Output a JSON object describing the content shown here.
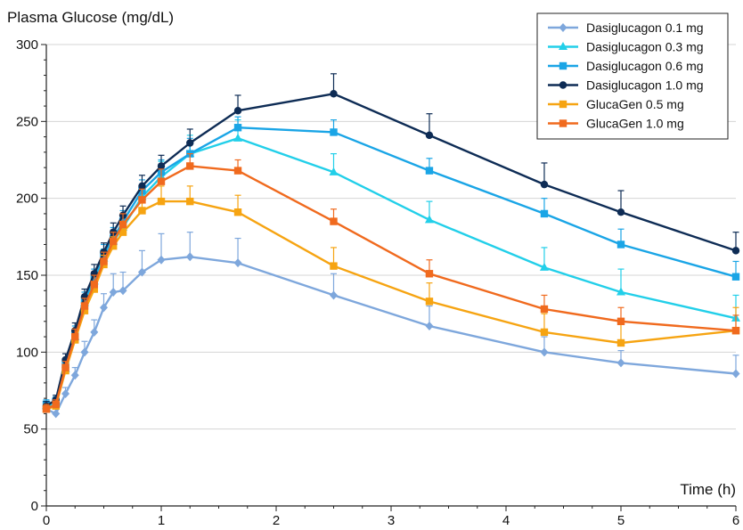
{
  "chart_data": {
    "type": "line",
    "ylabel": "Plasma Glucose (mg/dL)",
    "xlabel": "Time (h)",
    "xlim": [
      0,
      6
    ],
    "ylim": [
      0,
      300
    ],
    "xticks": [
      0,
      1,
      2,
      3,
      4,
      5,
      6
    ],
    "yticks": [
      0,
      50,
      100,
      150,
      200,
      250,
      300
    ],
    "grid": "horizontal",
    "legend_position": "top-right",
    "series": [
      {
        "name": "Dasiglucagon 0.1 mg",
        "color": "#7ea7dc",
        "marker": "diamond",
        "x": [
          0,
          0.083,
          0.167,
          0.25,
          0.333,
          0.417,
          0.5,
          0.583,
          0.667,
          0.833,
          1,
          1.25,
          1.667,
          2.5,
          3.333,
          4.333,
          5,
          6
        ],
        "y": [
          63,
          60,
          73,
          85,
          100,
          113,
          129,
          139,
          140,
          152,
          160,
          162,
          158,
          137,
          117,
          100,
          93,
          86
        ],
        "err": [
          3,
          3,
          4,
          5,
          7,
          8,
          9,
          12,
          12,
          14,
          17,
          16,
          16,
          14,
          13,
          10,
          8,
          12
        ]
      },
      {
        "name": "Dasiglucagon 0.3 mg",
        "color": "#22cfe9",
        "marker": "triangle",
        "x": [
          0,
          0.083,
          0.167,
          0.25,
          0.333,
          0.417,
          0.5,
          0.583,
          0.667,
          0.833,
          1,
          1.25,
          1.667,
          2.5,
          3.333,
          4.333,
          5,
          6
        ],
        "y": [
          65,
          66,
          89,
          110,
          132,
          146,
          161,
          172,
          181,
          201,
          214,
          229,
          239,
          217,
          186,
          155,
          139,
          122
        ],
        "err": [
          3,
          3,
          4,
          5,
          5,
          6,
          6,
          6,
          7,
          8,
          10,
          12,
          12,
          12,
          12,
          13,
          15,
          15
        ]
      },
      {
        "name": "Dasiglucagon 0.6 mg",
        "color": "#1aa5e6",
        "marker": "square",
        "x": [
          0,
          0.083,
          0.167,
          0.25,
          0.333,
          0.417,
          0.5,
          0.583,
          0.667,
          0.833,
          1,
          1.25,
          1.667,
          2.5,
          3.333,
          4.333,
          5,
          6
        ],
        "y": [
          66,
          68,
          92,
          112,
          134,
          148,
          164,
          174,
          185,
          205,
          217,
          229,
          246,
          243,
          218,
          190,
          170,
          149
        ],
        "err": [
          3,
          3,
          4,
          5,
          5,
          6,
          6,
          7,
          7,
          7,
          8,
          10,
          7,
          8,
          8,
          10,
          10,
          10
        ]
      },
      {
        "name": "Dasiglucagon 1.0 mg",
        "color": "#0e2c55",
        "marker": "circle",
        "x": [
          0,
          0.083,
          0.167,
          0.25,
          0.333,
          0.417,
          0.5,
          0.583,
          0.667,
          0.833,
          1,
          1.25,
          1.667,
          2.5,
          3.333,
          4.333,
          5,
          6
        ],
        "y": [
          65,
          69,
          95,
          114,
          136,
          151,
          165,
          178,
          189,
          208,
          221,
          236,
          257,
          268,
          241,
          209,
          191,
          166
        ],
        "err": [
          3,
          3,
          4,
          5,
          5,
          6,
          6,
          6,
          6,
          7,
          7,
          9,
          10,
          13,
          14,
          14,
          14,
          12
        ]
      },
      {
        "name": "GlucaGen 0.5 mg",
        "color": "#f6a412",
        "marker": "square",
        "x": [
          0,
          0.083,
          0.167,
          0.25,
          0.333,
          0.417,
          0.5,
          0.583,
          0.667,
          0.833,
          1,
          1.25,
          1.667,
          2.5,
          3.333,
          4.333,
          5,
          6
        ],
        "y": [
          63,
          65,
          88,
          108,
          127,
          141,
          157,
          169,
          178,
          192,
          198,
          198,
          191,
          156,
          133,
          113,
          106,
          114
        ],
        "err": [
          3,
          3,
          4,
          4,
          5,
          5,
          6,
          6,
          7,
          8,
          10,
          10,
          11,
          12,
          12,
          12,
          12,
          15
        ]
      },
      {
        "name": "GlucaGen 1.0 mg",
        "color": "#f06a1e",
        "marker": "square",
        "x": [
          0,
          0.083,
          0.167,
          0.25,
          0.333,
          0.417,
          0.5,
          0.583,
          0.667,
          0.833,
          1,
          1.25,
          1.667,
          2.5,
          3.333,
          4.333,
          5,
          6
        ],
        "y": [
          63,
          66,
          90,
          110,
          130,
          144,
          159,
          172,
          183,
          199,
          211,
          221,
          218,
          185,
          151,
          128,
          120,
          114
        ],
        "err": [
          3,
          3,
          4,
          5,
          5,
          6,
          6,
          6,
          7,
          7,
          8,
          8,
          7,
          8,
          9,
          9,
          9,
          10
        ]
      }
    ]
  }
}
